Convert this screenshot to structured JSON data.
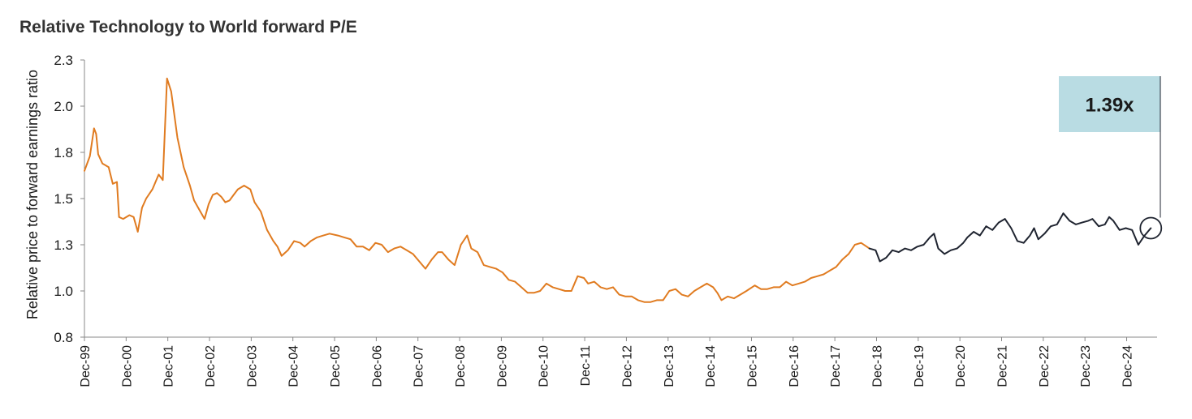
{
  "chart_data": {
    "type": "line",
    "title": "Relative Technology to World forward P/E",
    "ylabel": "Relative price to forward earnings ratio",
    "xlabel": "",
    "ylim": [
      0.8,
      2.3
    ],
    "yticks": [
      "0.8",
      "1.0",
      "1.3",
      "1.5",
      "1.8",
      "2.0",
      "2.3"
    ],
    "categories": [
      "Dec-99",
      "Dec-00",
      "Dec-01",
      "Dec-02",
      "Dec-03",
      "Dec-04",
      "Dec-05",
      "Dec-06",
      "Dec-07",
      "Dec-08",
      "Dec-09",
      "Dec-10",
      "Dec-11",
      "Dec-12",
      "Dec-13",
      "Dec-14",
      "Dec-15",
      "Dec-16",
      "Dec-17",
      "Dec-18",
      "Dec-19",
      "Dec-20",
      "Dec-21",
      "Dec-22",
      "Dec-23",
      "Dec-24"
    ],
    "grid": false,
    "legend": "none",
    "series": [
      {
        "color": "#e07b20",
        "points": [
          [
            1999.92,
            1.7
          ],
          [
            2000.05,
            1.78
          ],
          [
            2000.15,
            1.93
          ],
          [
            2000.2,
            1.9
          ],
          [
            2000.25,
            1.79
          ],
          [
            2000.35,
            1.74
          ],
          [
            2000.5,
            1.72
          ],
          [
            2000.6,
            1.63
          ],
          [
            2000.7,
            1.64
          ],
          [
            2000.75,
            1.45
          ],
          [
            2000.85,
            1.44
          ],
          [
            2001.0,
            1.46
          ],
          [
            2001.1,
            1.45
          ],
          [
            2001.2,
            1.37
          ],
          [
            2001.3,
            1.5
          ],
          [
            2001.4,
            1.55
          ],
          [
            2001.55,
            1.6
          ],
          [
            2001.7,
            1.68
          ],
          [
            2001.8,
            1.65
          ],
          [
            2001.9,
            2.2
          ],
          [
            2002.0,
            2.13
          ],
          [
            2002.15,
            1.88
          ],
          [
            2002.3,
            1.72
          ],
          [
            2002.45,
            1.62
          ],
          [
            2002.55,
            1.54
          ],
          [
            2002.7,
            1.48
          ],
          [
            2002.8,
            1.44
          ],
          [
            2002.9,
            1.52
          ],
          [
            2003.0,
            1.57
          ],
          [
            2003.1,
            1.58
          ],
          [
            2003.2,
            1.56
          ],
          [
            2003.3,
            1.53
          ],
          [
            2003.4,
            1.54
          ],
          [
            2003.5,
            1.57
          ],
          [
            2003.6,
            1.6
          ],
          [
            2003.75,
            1.62
          ],
          [
            2003.9,
            1.6
          ],
          [
            2004.0,
            1.53
          ],
          [
            2004.15,
            1.48
          ],
          [
            2004.3,
            1.38
          ],
          [
            2004.45,
            1.32
          ],
          [
            2004.55,
            1.29
          ],
          [
            2004.65,
            1.24
          ],
          [
            2004.8,
            1.27
          ],
          [
            2004.95,
            1.32
          ],
          [
            2005.1,
            1.31
          ],
          [
            2005.2,
            1.29
          ],
          [
            2005.35,
            1.32
          ],
          [
            2005.5,
            1.34
          ],
          [
            2005.65,
            1.35
          ],
          [
            2005.8,
            1.36
          ],
          [
            2006.0,
            1.35
          ],
          [
            2006.15,
            1.34
          ],
          [
            2006.3,
            1.33
          ],
          [
            2006.45,
            1.29
          ],
          [
            2006.6,
            1.29
          ],
          [
            2006.75,
            1.27
          ],
          [
            2006.9,
            1.31
          ],
          [
            2007.05,
            1.3
          ],
          [
            2007.2,
            1.26
          ],
          [
            2007.35,
            1.28
          ],
          [
            2007.5,
            1.29
          ],
          [
            2007.65,
            1.27
          ],
          [
            2007.8,
            1.25
          ],
          [
            2007.95,
            1.21
          ],
          [
            2008.1,
            1.17
          ],
          [
            2008.25,
            1.22
          ],
          [
            2008.4,
            1.26
          ],
          [
            2008.5,
            1.26
          ],
          [
            2008.65,
            1.22
          ],
          [
            2008.8,
            1.19
          ],
          [
            2008.95,
            1.3
          ],
          [
            2009.1,
            1.35
          ],
          [
            2009.2,
            1.28
          ],
          [
            2009.35,
            1.26
          ],
          [
            2009.5,
            1.19
          ],
          [
            2009.65,
            1.18
          ],
          [
            2009.8,
            1.17
          ],
          [
            2009.95,
            1.15
          ],
          [
            2010.1,
            1.11
          ],
          [
            2010.25,
            1.1
          ],
          [
            2010.4,
            1.07
          ],
          [
            2010.55,
            1.04
          ],
          [
            2010.7,
            1.04
          ],
          [
            2010.85,
            1.05
          ],
          [
            2011.0,
            1.09
          ],
          [
            2011.15,
            1.07
          ],
          [
            2011.3,
            1.06
          ],
          [
            2011.45,
            1.05
          ],
          [
            2011.6,
            1.05
          ],
          [
            2011.75,
            1.13
          ],
          [
            2011.9,
            1.12
          ],
          [
            2012.0,
            1.09
          ],
          [
            2012.15,
            1.1
          ],
          [
            2012.3,
            1.07
          ],
          [
            2012.45,
            1.06
          ],
          [
            2012.6,
            1.07
          ],
          [
            2012.75,
            1.03
          ],
          [
            2012.9,
            1.02
          ],
          [
            2013.05,
            1.02
          ],
          [
            2013.2,
            1.0
          ],
          [
            2013.35,
            0.99
          ],
          [
            2013.5,
            0.99
          ],
          [
            2013.65,
            1.0
          ],
          [
            2013.8,
            1.0
          ],
          [
            2013.95,
            1.05
          ],
          [
            2014.1,
            1.06
          ],
          [
            2014.25,
            1.03
          ],
          [
            2014.4,
            1.02
          ],
          [
            2014.55,
            1.05
          ],
          [
            2014.7,
            1.07
          ],
          [
            2014.85,
            1.09
          ],
          [
            2015.0,
            1.07
          ],
          [
            2015.1,
            1.04
          ],
          [
            2015.2,
            1.0
          ],
          [
            2015.35,
            1.02
          ],
          [
            2015.5,
            1.01
          ],
          [
            2015.65,
            1.03
          ],
          [
            2015.8,
            1.05
          ],
          [
            2016.0,
            1.08
          ],
          [
            2016.15,
            1.06
          ],
          [
            2016.3,
            1.06
          ],
          [
            2016.45,
            1.07
          ],
          [
            2016.6,
            1.07
          ],
          [
            2016.75,
            1.1
          ],
          [
            2016.9,
            1.08
          ],
          [
            2017.05,
            1.09
          ],
          [
            2017.2,
            1.1
          ],
          [
            2017.35,
            1.12
          ],
          [
            2017.5,
            1.13
          ],
          [
            2017.65,
            1.14
          ],
          [
            2017.8,
            1.16
          ],
          [
            2017.95,
            1.18
          ],
          [
            2018.1,
            1.22
          ],
          [
            2018.25,
            1.25
          ],
          [
            2018.4,
            1.3
          ],
          [
            2018.55,
            1.31
          ],
          [
            2018.75,
            1.28
          ]
        ]
      },
      {
        "color": "#1f2430",
        "points": [
          [
            2018.75,
            1.28
          ],
          [
            2018.9,
            1.27
          ],
          [
            2019.0,
            1.21
          ],
          [
            2019.15,
            1.23
          ],
          [
            2019.3,
            1.27
          ],
          [
            2019.45,
            1.26
          ],
          [
            2019.6,
            1.28
          ],
          [
            2019.75,
            1.27
          ],
          [
            2019.9,
            1.29
          ],
          [
            2020.05,
            1.3
          ],
          [
            2020.2,
            1.34
          ],
          [
            2020.3,
            1.36
          ],
          [
            2020.4,
            1.28
          ],
          [
            2020.55,
            1.25
          ],
          [
            2020.7,
            1.27
          ],
          [
            2020.85,
            1.28
          ],
          [
            2021.0,
            1.31
          ],
          [
            2021.1,
            1.34
          ],
          [
            2021.25,
            1.37
          ],
          [
            2021.4,
            1.35
          ],
          [
            2021.55,
            1.4
          ],
          [
            2021.7,
            1.38
          ],
          [
            2021.85,
            1.42
          ],
          [
            2022.0,
            1.44
          ],
          [
            2022.15,
            1.39
          ],
          [
            2022.3,
            1.32
          ],
          [
            2022.45,
            1.31
          ],
          [
            2022.6,
            1.35
          ],
          [
            2022.7,
            1.39
          ],
          [
            2022.8,
            1.33
          ],
          [
            2022.95,
            1.36
          ],
          [
            2023.1,
            1.4
          ],
          [
            2023.25,
            1.41
          ],
          [
            2023.4,
            1.47
          ],
          [
            2023.55,
            1.43
          ],
          [
            2023.7,
            1.41
          ],
          [
            2023.85,
            1.42
          ],
          [
            2024.0,
            1.43
          ],
          [
            2024.1,
            1.44
          ],
          [
            2024.25,
            1.4
          ],
          [
            2024.4,
            1.41
          ],
          [
            2024.5,
            1.45
          ],
          [
            2024.6,
            1.43
          ],
          [
            2024.75,
            1.38
          ],
          [
            2024.9,
            1.39
          ],
          [
            2025.05,
            1.38
          ],
          [
            2025.2,
            1.3
          ],
          [
            2025.35,
            1.35
          ],
          [
            2025.5,
            1.39
          ]
        ]
      }
    ],
    "annotation": {
      "label": "1.39x",
      "x": 2025.5,
      "y": 1.39,
      "fill": "#b9dce3"
    }
  }
}
